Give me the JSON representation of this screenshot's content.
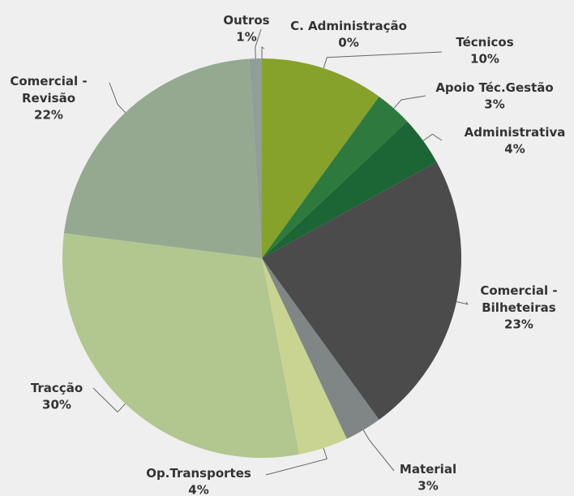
{
  "chart_data": {
    "type": "pie",
    "categories": [
      "C. Administração",
      "Técnicos",
      "Apoio Téc.Gestão",
      "Administrativa",
      "Comercial - Bilheteiras",
      "Material",
      "Op.Transportes",
      "Tracção",
      "Comercial - Revisão",
      "Outros"
    ],
    "values": [
      0,
      10,
      3,
      4,
      23,
      3,
      4,
      30,
      22,
      1
    ],
    "value_labels": [
      "0%",
      "10%",
      "3%",
      "4%",
      "23%",
      "3%",
      "4%",
      "30%",
      "22%",
      "1%"
    ],
    "colors": [
      "#b5c06a",
      "#86a22a",
      "#2e7a3e",
      "#1c6534",
      "#4a4b4a",
      "#808585",
      "#c9d491",
      "#b2c68f",
      "#95a890",
      "#8f9e98"
    ]
  }
}
